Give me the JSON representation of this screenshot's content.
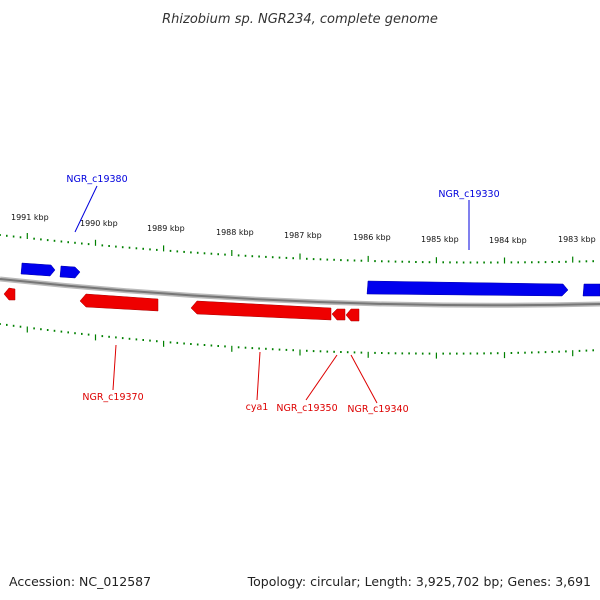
{
  "title": "Rhizobium sp. NGR234, complete genome",
  "footer": {
    "accession": "Accession: NC_012587",
    "topology": "Topology: circular; Length: 3,925,702 bp; Genes: 3,691"
  },
  "colors": {
    "forward": "#0000ff",
    "reverse": "#ff0000",
    "backbone": "#888888",
    "ticks": "#008000"
  },
  "ticks": [
    {
      "label": "1991 kbp"
    },
    {
      "label": "1990 kbp"
    },
    {
      "label": "1989 kbp"
    },
    {
      "label": "1988 kbp"
    },
    {
      "label": "1987 kbp"
    },
    {
      "label": "1986 kbp"
    },
    {
      "label": "1985 kbp"
    },
    {
      "label": "1984 kbp"
    },
    {
      "label": "1983 kbp"
    }
  ],
  "genes": [
    {
      "id": "NGR_c19380",
      "strand": "forward"
    },
    {
      "id": "NGR_c19330",
      "strand": "forward"
    },
    {
      "id": "NGR_c19370",
      "strand": "reverse"
    },
    {
      "id": "cya1",
      "strand": "reverse"
    },
    {
      "id": "NGR_c19350",
      "strand": "reverse"
    },
    {
      "id": "NGR_c19340",
      "strand": "reverse"
    }
  ]
}
